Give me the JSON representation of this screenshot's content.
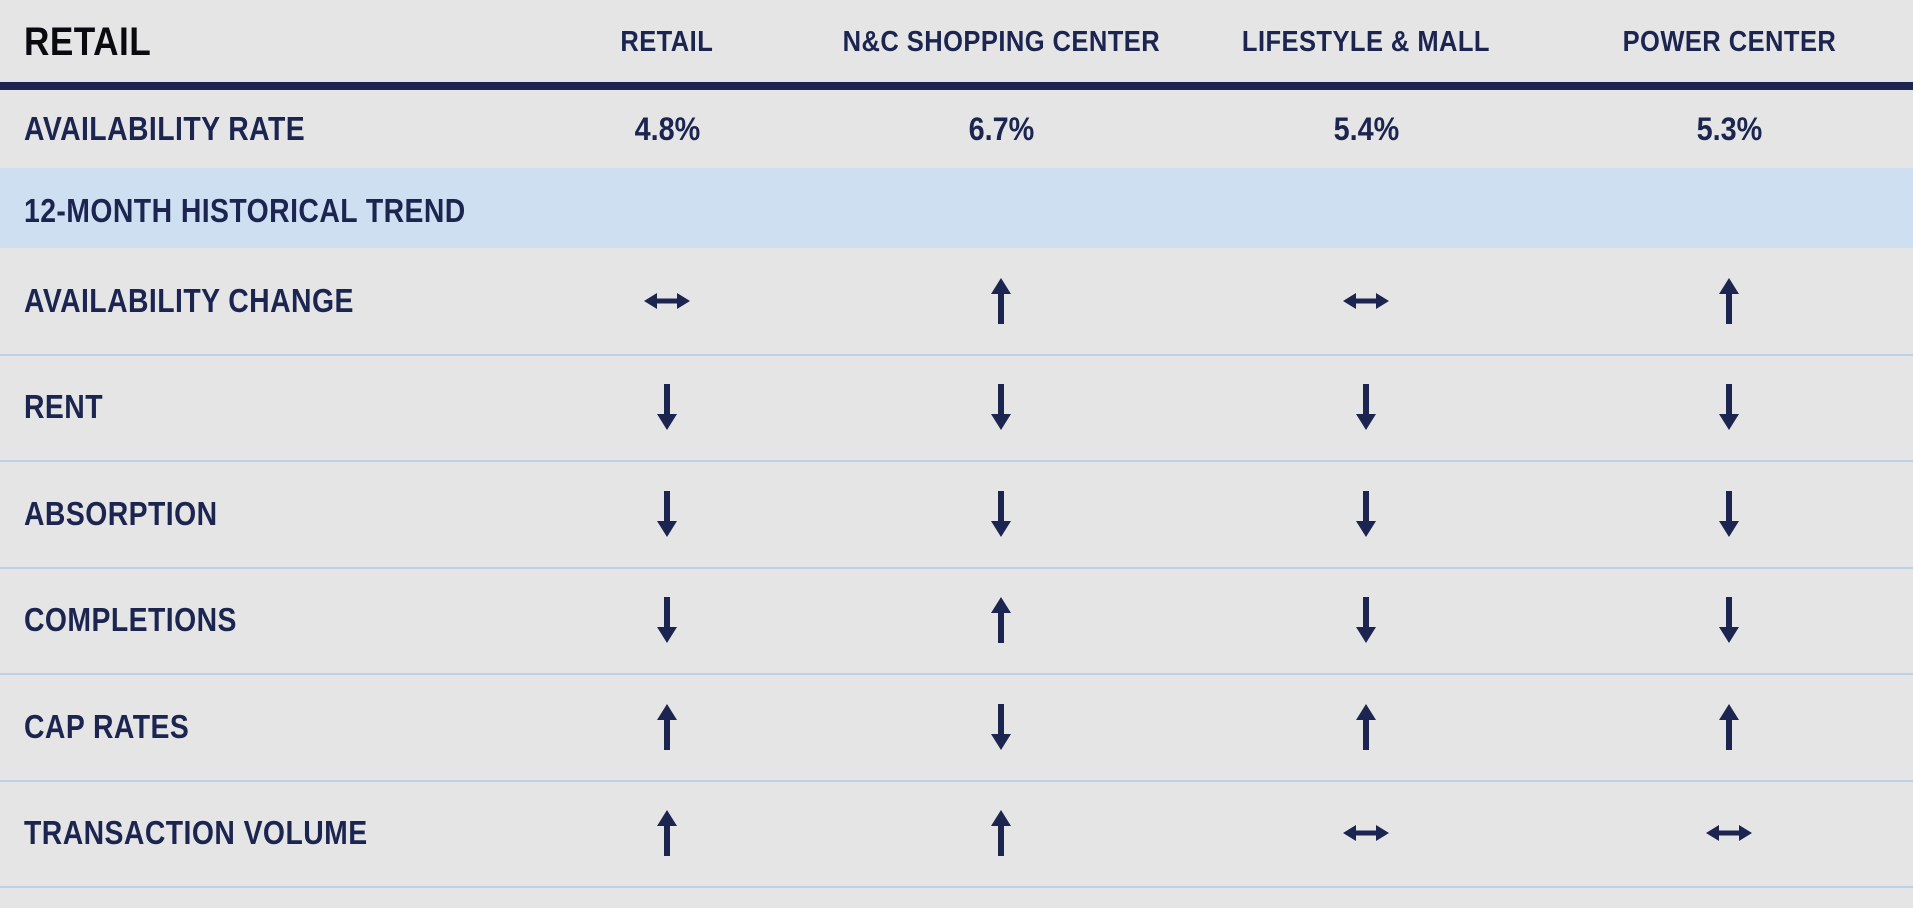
{
  "table": {
    "title": "RETAIL",
    "columns": [
      "RETAIL",
      "N&C SHOPPING CENTER",
      "LIFESTYLE & MALL",
      "POWER CENTER"
    ],
    "availability": {
      "label": "AVAILABILITY RATE",
      "values": [
        "4.8%",
        "6.7%",
        "5.4%",
        "5.3%"
      ]
    },
    "trend_header": "12-MONTH HISTORICAL TREND",
    "trends": [
      {
        "label": "AVAILABILITY CHANGE",
        "values": [
          "flat",
          "up",
          "flat",
          "up"
        ]
      },
      {
        "label": "RENT",
        "values": [
          "down",
          "down",
          "down",
          "down"
        ]
      },
      {
        "label": "ABSORPTION",
        "values": [
          "down",
          "down",
          "down",
          "down"
        ]
      },
      {
        "label": "COMPLETIONS",
        "values": [
          "down",
          "up",
          "down",
          "down"
        ]
      },
      {
        "label": "CAP RATES",
        "values": [
          "up",
          "down",
          "up",
          "up"
        ]
      },
      {
        "label": "TRANSACTION VOLUME",
        "values": [
          "up",
          "up",
          "flat",
          "flat"
        ]
      }
    ]
  },
  "icons": {
    "up": "arrow-up-icon",
    "down": "arrow-down-icon",
    "flat": "arrow-left-right-icon"
  },
  "colors": {
    "navy": "#1b2550",
    "band": "#cfdff2",
    "background": "#e5e5e6"
  }
}
